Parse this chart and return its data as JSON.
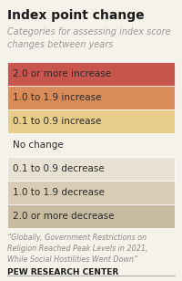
{
  "title": "Index point change",
  "subtitle": "Categories for assessing index score\nchanges between years",
  "categories": [
    "2.0 or more increase",
    "1.0 to 1.9 increase",
    "0.1 to 0.9 increase",
    "No change",
    "0.1 to 0.9 decrease",
    "1.0 to 1.9 decrease",
    "2.0 or more decrease"
  ],
  "colors": [
    "#c8564e",
    "#d98b58",
    "#e8cc8a",
    "#f5f0e8",
    "#e8e2d4",
    "#d8ccb4",
    "#c8bba0"
  ],
  "no_change_idx": 3,
  "footnote": "“Globally, Government Restrictions on\nReligion Reached Peak Levels in 2021,\nWhile Social Hostilities Went Down”",
  "source": "PEW RESEARCH CENTER",
  "bg_color": "#f5f2ea"
}
